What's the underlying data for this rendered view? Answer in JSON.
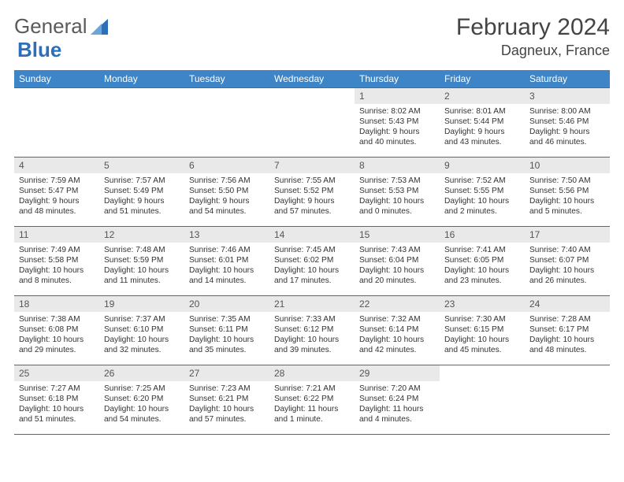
{
  "brand": {
    "part1": "General",
    "part2": "Blue"
  },
  "header": {
    "month": "February 2024",
    "location": "Dagneux, France"
  },
  "colors": {
    "accent": "#3d85c6",
    "rule": "#2d6fb8",
    "daynum_bg": "#e9e9e9"
  },
  "weekdays": [
    "Sunday",
    "Monday",
    "Tuesday",
    "Wednesday",
    "Thursday",
    "Friday",
    "Saturday"
  ],
  "weeks": [
    [
      null,
      null,
      null,
      null,
      {
        "n": "1",
        "sr": "8:02 AM",
        "ss": "5:43 PM",
        "dl": "9 hours and 40 minutes."
      },
      {
        "n": "2",
        "sr": "8:01 AM",
        "ss": "5:44 PM",
        "dl": "9 hours and 43 minutes."
      },
      {
        "n": "3",
        "sr": "8:00 AM",
        "ss": "5:46 PM",
        "dl": "9 hours and 46 minutes."
      }
    ],
    [
      {
        "n": "4",
        "sr": "7:59 AM",
        "ss": "5:47 PM",
        "dl": "9 hours and 48 minutes."
      },
      {
        "n": "5",
        "sr": "7:57 AM",
        "ss": "5:49 PM",
        "dl": "9 hours and 51 minutes."
      },
      {
        "n": "6",
        "sr": "7:56 AM",
        "ss": "5:50 PM",
        "dl": "9 hours and 54 minutes."
      },
      {
        "n": "7",
        "sr": "7:55 AM",
        "ss": "5:52 PM",
        "dl": "9 hours and 57 minutes."
      },
      {
        "n": "8",
        "sr": "7:53 AM",
        "ss": "5:53 PM",
        "dl": "10 hours and 0 minutes."
      },
      {
        "n": "9",
        "sr": "7:52 AM",
        "ss": "5:55 PM",
        "dl": "10 hours and 2 minutes."
      },
      {
        "n": "10",
        "sr": "7:50 AM",
        "ss": "5:56 PM",
        "dl": "10 hours and 5 minutes."
      }
    ],
    [
      {
        "n": "11",
        "sr": "7:49 AM",
        "ss": "5:58 PM",
        "dl": "10 hours and 8 minutes."
      },
      {
        "n": "12",
        "sr": "7:48 AM",
        "ss": "5:59 PM",
        "dl": "10 hours and 11 minutes."
      },
      {
        "n": "13",
        "sr": "7:46 AM",
        "ss": "6:01 PM",
        "dl": "10 hours and 14 minutes."
      },
      {
        "n": "14",
        "sr": "7:45 AM",
        "ss": "6:02 PM",
        "dl": "10 hours and 17 minutes."
      },
      {
        "n": "15",
        "sr": "7:43 AM",
        "ss": "6:04 PM",
        "dl": "10 hours and 20 minutes."
      },
      {
        "n": "16",
        "sr": "7:41 AM",
        "ss": "6:05 PM",
        "dl": "10 hours and 23 minutes."
      },
      {
        "n": "17",
        "sr": "7:40 AM",
        "ss": "6:07 PM",
        "dl": "10 hours and 26 minutes."
      }
    ],
    [
      {
        "n": "18",
        "sr": "7:38 AM",
        "ss": "6:08 PM",
        "dl": "10 hours and 29 minutes."
      },
      {
        "n": "19",
        "sr": "7:37 AM",
        "ss": "6:10 PM",
        "dl": "10 hours and 32 minutes."
      },
      {
        "n": "20",
        "sr": "7:35 AM",
        "ss": "6:11 PM",
        "dl": "10 hours and 35 minutes."
      },
      {
        "n": "21",
        "sr": "7:33 AM",
        "ss": "6:12 PM",
        "dl": "10 hours and 39 minutes."
      },
      {
        "n": "22",
        "sr": "7:32 AM",
        "ss": "6:14 PM",
        "dl": "10 hours and 42 minutes."
      },
      {
        "n": "23",
        "sr": "7:30 AM",
        "ss": "6:15 PM",
        "dl": "10 hours and 45 minutes."
      },
      {
        "n": "24",
        "sr": "7:28 AM",
        "ss": "6:17 PM",
        "dl": "10 hours and 48 minutes."
      }
    ],
    [
      {
        "n": "25",
        "sr": "7:27 AM",
        "ss": "6:18 PM",
        "dl": "10 hours and 51 minutes."
      },
      {
        "n": "26",
        "sr": "7:25 AM",
        "ss": "6:20 PM",
        "dl": "10 hours and 54 minutes."
      },
      {
        "n": "27",
        "sr": "7:23 AM",
        "ss": "6:21 PM",
        "dl": "10 hours and 57 minutes."
      },
      {
        "n": "28",
        "sr": "7:21 AM",
        "ss": "6:22 PM",
        "dl": "11 hours and 1 minute."
      },
      {
        "n": "29",
        "sr": "7:20 AM",
        "ss": "6:24 PM",
        "dl": "11 hours and 4 minutes."
      },
      null,
      null
    ]
  ],
  "labels": {
    "sunrise": "Sunrise: ",
    "sunset": "Sunset: ",
    "daylight": "Daylight: "
  }
}
